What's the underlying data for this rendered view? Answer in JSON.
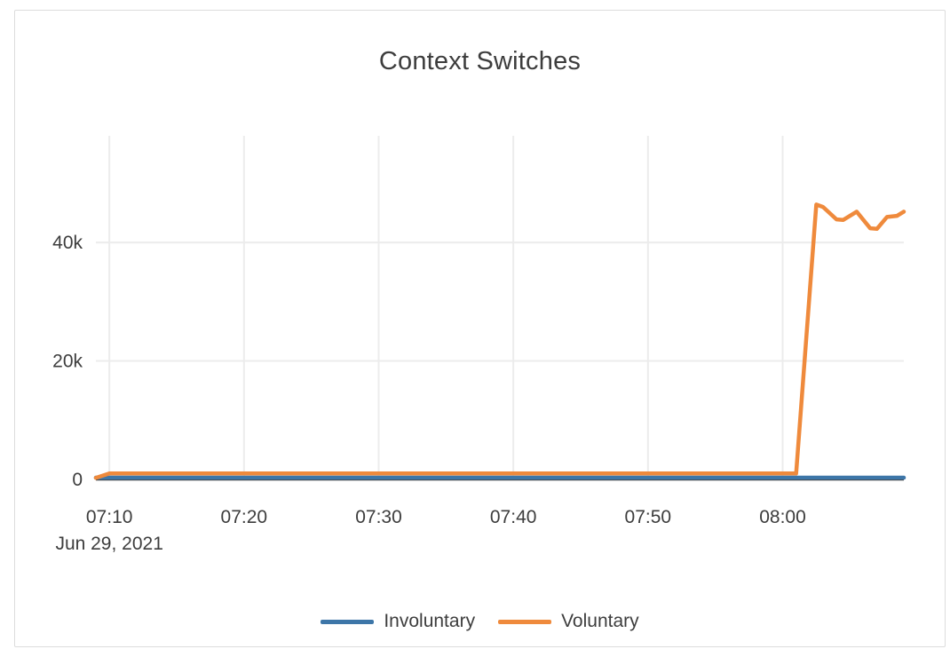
{
  "card": {
    "background": "#ffffff",
    "border_color": "#dcdcdc"
  },
  "text_color": "#3d3d3d",
  "chart_data": {
    "type": "line",
    "title": "Context Switches",
    "x_axis": {
      "range": [
        "07:09",
        "08:09"
      ],
      "ticks": [
        {
          "label": "07:10",
          "t": "07:10"
        },
        {
          "label": "07:20",
          "t": "07:20"
        },
        {
          "label": "07:30",
          "t": "07:30"
        },
        {
          "label": "07:40",
          "t": "07:40"
        },
        {
          "label": "07:50",
          "t": "07:50"
        },
        {
          "label": "08:00",
          "t": "08:00"
        }
      ],
      "date_label": "Jun 29, 2021"
    },
    "y_axis": {
      "range": [
        0,
        58000
      ],
      "ticks": [
        {
          "label": "0",
          "value": 0
        },
        {
          "label": "20k",
          "value": 20000
        },
        {
          "label": "40k",
          "value": 40000
        }
      ]
    },
    "grid": {
      "gridline_color": "#ececec",
      "axis_line_color": "#444444",
      "grid_on": true
    },
    "legend_position": "bottom-center",
    "series": [
      {
        "name": "Involuntary",
        "color": "#3d76a8",
        "points": [
          [
            "07:09",
            300
          ],
          [
            "08:09",
            300
          ]
        ]
      },
      {
        "name": "Voluntary",
        "color": "#ef8a3c",
        "points": [
          [
            "07:09",
            250
          ],
          [
            "07:10",
            1000
          ],
          [
            "08:01",
            1000
          ],
          [
            "08:02:30",
            46400
          ],
          [
            "08:03:00",
            46000
          ],
          [
            "08:04:00",
            43900
          ],
          [
            "08:04:30",
            43800
          ],
          [
            "08:05:30",
            45200
          ],
          [
            "08:06:30",
            42400
          ],
          [
            "08:07:00",
            42300
          ],
          [
            "08:07:45",
            44300
          ],
          [
            "08:08:30",
            44500
          ],
          [
            "08:09:00",
            45200
          ]
        ]
      }
    ]
  }
}
